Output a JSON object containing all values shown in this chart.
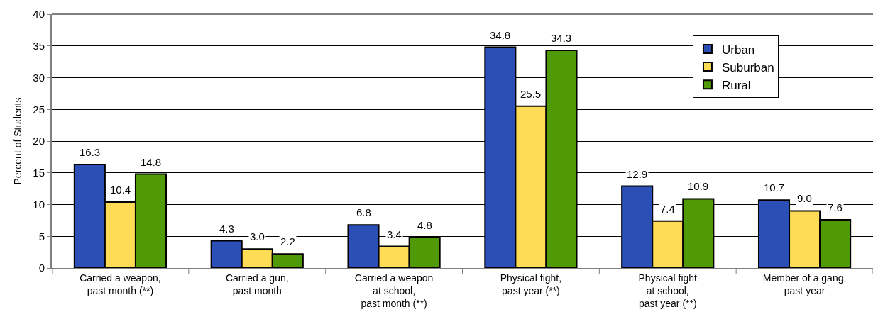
{
  "chart_data": {
    "type": "bar",
    "ylabel": "Percent of Students",
    "categories": [
      "Carried a weapon,\npast month (**)",
      "Carried a gun,\npast month",
      "Carried a weapon\nat school,\npast month (**)",
      "Physical fight,\npast year (**)",
      "Physical fight\nat school,\npast year (**)",
      "Member of a gang,\npast year"
    ],
    "series": [
      {
        "name": "Urban",
        "color": "#2b4fb5",
        "values": [
          16.3,
          4.3,
          6.8,
          34.8,
          12.9,
          10.7
        ],
        "value_labels": [
          "16.3",
          "4.3",
          "6.8",
          "34.8",
          "12.9",
          "10.7"
        ]
      },
      {
        "name": "Suburban",
        "color": "#ffdc55",
        "values": [
          10.4,
          3.0,
          3.4,
          25.5,
          7.4,
          9.0
        ],
        "value_labels": [
          "10.4",
          "3.0",
          "3.4",
          "25.5",
          "7.4",
          "9.0"
        ]
      },
      {
        "name": "Rural",
        "color": "#4f9a06",
        "values": [
          14.8,
          2.2,
          4.8,
          34.3,
          10.9,
          7.6
        ],
        "value_labels": [
          "14.8",
          "2.2",
          "4.8",
          "34.3",
          "10.9",
          "7.6"
        ]
      }
    ],
    "ylim": [
      0,
      40
    ],
    "yticks": [
      0,
      5,
      10,
      15,
      20,
      25,
      30,
      35,
      40
    ],
    "grid": "y",
    "legend": "top right"
  }
}
